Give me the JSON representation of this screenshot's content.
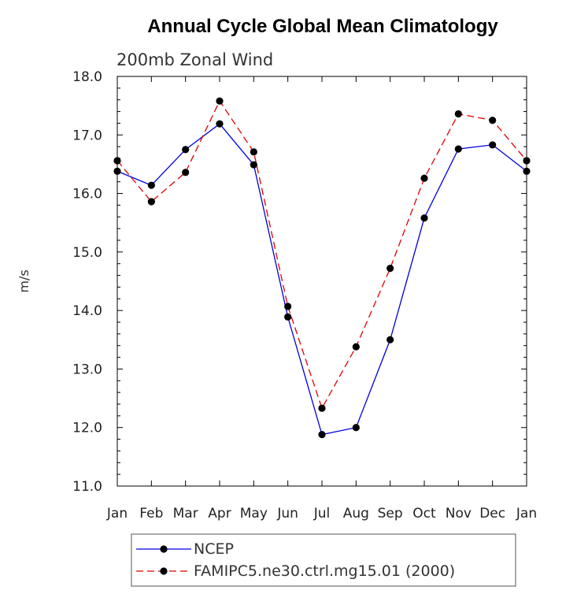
{
  "chart_data": {
    "type": "line",
    "title": "Annual Cycle Global Mean Climatology",
    "subtitle": "200mb Zonal Wind",
    "xlabel": "",
    "ylabel": "m/s",
    "categories": [
      "Jan",
      "Feb",
      "Mar",
      "Apr",
      "May",
      "Jun",
      "Jul",
      "Aug",
      "Sep",
      "Oct",
      "Nov",
      "Dec",
      "Jan"
    ],
    "y_ticks": [
      "11.0",
      "12.0",
      "13.0",
      "14.0",
      "15.0",
      "16.0",
      "17.0",
      "18.0"
    ],
    "ylim": [
      11.0,
      18.0
    ],
    "grid": false,
    "legend_position": "bottom",
    "series": [
      {
        "name": "NCEP",
        "color": "#0000dd",
        "line_style": "solid",
        "values": [
          16.38,
          16.14,
          16.75,
          17.19,
          16.49,
          13.89,
          11.88,
          12.0,
          13.5,
          15.58,
          16.76,
          16.83,
          16.38
        ]
      },
      {
        "name": "FAMIPC5.ne30.ctrl.mg15.01 (2000)",
        "color": "#dd0000",
        "line_style": "dashed",
        "values": [
          16.56,
          15.86,
          16.36,
          17.58,
          16.71,
          14.07,
          12.33,
          13.38,
          14.72,
          16.26,
          17.36,
          17.25,
          16.56
        ]
      }
    ]
  }
}
